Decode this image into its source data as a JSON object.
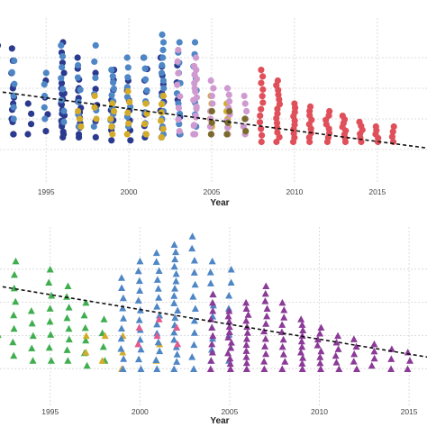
{
  "colors": {
    "navy": "#2b3a8f",
    "blue": "#4e86c6",
    "gold": "#d4ac2a",
    "pink": "#cf9ad0",
    "olive": "#7a6a2c",
    "red": "#e0505a",
    "green": "#3fae4f",
    "magenta": "#e35a8e",
    "purple": "#8b3a97",
    "trend": "#111111",
    "grid": "#d4d4d4"
  },
  "chart_data": [
    {
      "type": "scatter",
      "marker": "circle",
      "xlabel": "Year",
      "ylabel": "",
      "xlim": [
        1992,
        2018
      ],
      "ylim": [
        0,
        100
      ],
      "x_ticks": [
        "1995",
        "2000",
        "2005",
        "2010",
        "2015"
      ],
      "grid": true,
      "trend": {
        "x0": 1992,
        "y0": 58,
        "x1": 2018,
        "y1": 21
      },
      "series": [
        {
          "color": "navy",
          "x": [
            1992,
            1993,
            1993,
            1994,
            1995,
            1996,
            1996,
            1997,
            1997,
            1998,
            1999,
            2000,
            2001,
            2002,
            2003
          ],
          "y_min": [
            30,
            30,
            30,
            30,
            32,
            28,
            30,
            30,
            28,
            28,
            26,
            26,
            28,
            28,
            30
          ],
          "y_max": [
            88,
            86,
            70,
            50,
            65,
            60,
            90,
            80,
            60,
            70,
            72,
            65,
            80,
            80,
            75
          ],
          "n": [
            8,
            8,
            5,
            4,
            4,
            10,
            10,
            8,
            6,
            5,
            8,
            7,
            8,
            10,
            5
          ]
        },
        {
          "color": "blue",
          "x": [
            1993,
            1995,
            1996,
            1997,
            1998,
            1999,
            2000,
            2001,
            2002,
            2003,
            2004
          ],
          "y_min": [
            40,
            40,
            38,
            35,
            35,
            35,
            35,
            30,
            30,
            30,
            35
          ],
          "y_max": [
            78,
            70,
            88,
            75,
            88,
            72,
            80,
            80,
            95,
            90,
            90
          ],
          "n": [
            6,
            5,
            8,
            6,
            6,
            10,
            8,
            8,
            14,
            10,
            8
          ]
        },
        {
          "color": "gold",
          "x": [
            1997,
            1998,
            1999,
            2000,
            2001,
            2002,
            2005,
            2006
          ],
          "y_min": [
            35,
            40,
            30,
            30,
            30,
            28,
            35,
            30
          ],
          "y_max": [
            45,
            55,
            50,
            58,
            50,
            55,
            55,
            50
          ],
          "n": [
            3,
            3,
            5,
            5,
            4,
            6,
            5,
            5
          ]
        },
        {
          "color": "pink",
          "x": [
            2003,
            2004,
            2004,
            2005,
            2006,
            2007
          ],
          "y_min": [
            32,
            30,
            30,
            30,
            30,
            30
          ],
          "y_max": [
            85,
            80,
            72,
            65,
            60,
            55
          ],
          "n": [
            8,
            10,
            8,
            8,
            8,
            6
          ]
        },
        {
          "color": "olive",
          "x": [
            2005,
            2006,
            2007
          ],
          "y_min": [
            30,
            30,
            32
          ],
          "y_max": [
            45,
            45,
            40
          ],
          "n": [
            3,
            3,
            2
          ]
        },
        {
          "color": "red",
          "x": [
            2008,
            2009,
            2010,
            2011,
            2012,
            2013,
            2014,
            2015,
            2016
          ],
          "y_min": [
            25,
            25,
            25,
            25,
            25,
            25,
            25,
            25,
            25
          ],
          "y_max": [
            72,
            65,
            50,
            48,
            45,
            42,
            38,
            35,
            35
          ],
          "n": [
            12,
            14,
            10,
            9,
            8,
            8,
            6,
            5,
            4
          ]
        }
      ]
    },
    {
      "type": "scatter",
      "marker": "triangle",
      "xlabel": "Year",
      "ylabel": "",
      "xlim": [
        1992,
        2016
      ],
      "ylim": [
        0,
        100
      ],
      "x_ticks": [
        "1995",
        "2000",
        "2005",
        "2010",
        "2015"
      ],
      "grid": true,
      "trend": {
        "x0": 1992,
        "y0": 70,
        "x1": 2016,
        "y1": 27
      },
      "series": [
        {
          "color": "green",
          "x": [
            1992,
            1993,
            1994,
            1995,
            1996,
            1997,
            1998
          ],
          "y_min": [
            25,
            28,
            25,
            25,
            25,
            22,
            25
          ],
          "y_max": [
            95,
            85,
            55,
            80,
            70,
            60,
            50
          ],
          "n": [
            10,
            8,
            5,
            8,
            8,
            6,
            4
          ]
        },
        {
          "color": "gold",
          "x": [
            1997,
            1998,
            1999,
            2001
          ],
          "y_min": [
            30,
            25,
            20,
            25
          ],
          "y_max": [
            40,
            40,
            40,
            35
          ],
          "n": [
            2,
            2,
            3,
            2
          ]
        },
        {
          "color": "blue",
          "x": [
            1999,
            2000,
            2001,
            2002,
            2003,
            2004,
            2005
          ],
          "y_min": [
            20,
            20,
            20,
            20,
            20,
            25,
            25
          ],
          "y_max": [
            75,
            85,
            90,
            95,
            100,
            85,
            80
          ],
          "n": [
            10,
            12,
            14,
            18,
            12,
            10,
            8
          ]
        },
        {
          "color": "magenta",
          "x": [
            2000,
            2001,
            2002
          ],
          "y_min": [
            35,
            40,
            35
          ],
          "y_max": [
            45,
            50,
            45
          ],
          "n": [
            2,
            2,
            2
          ]
        },
        {
          "color": "purple",
          "x": [
            2004,
            2005,
            2006,
            2007,
            2008,
            2009,
            2010,
            2011,
            2012,
            2013,
            2014,
            2015
          ],
          "y_min": [
            20,
            20,
            20,
            20,
            20,
            20,
            20,
            20,
            20,
            22,
            20,
            20
          ],
          "y_max": [
            65,
            55,
            60,
            70,
            60,
            50,
            45,
            40,
            38,
            35,
            32,
            30
          ],
          "n": [
            10,
            12,
            12,
            12,
            10,
            10,
            8,
            6,
            5,
            4,
            3,
            3
          ]
        }
      ]
    }
  ]
}
